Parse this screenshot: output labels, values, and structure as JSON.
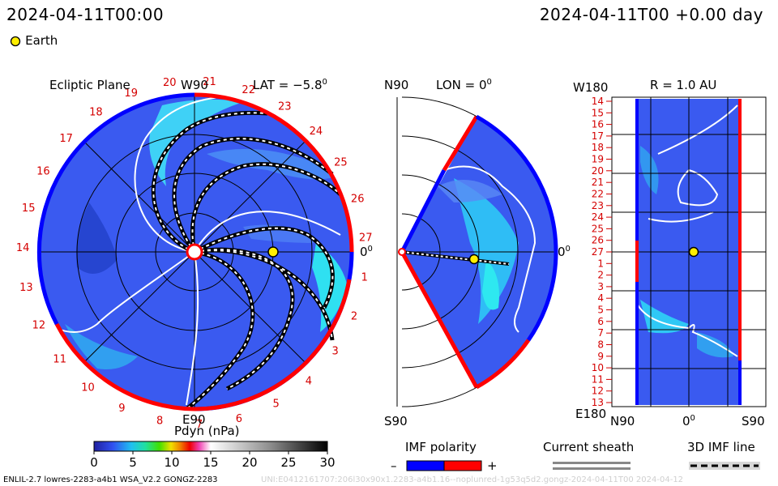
{
  "header": {
    "datetime_left": "2024-04-11T00:00",
    "datetime_right": "2024-04-11T00 +0.00 day"
  },
  "legend": {
    "earth_label": "Earth",
    "earth_color": "#ffee00"
  },
  "panel_ecliptic": {
    "title": "Ecliptic Plane",
    "lat_label": "LAT = −5.8",
    "lat_deg": "0",
    "top_label": "W90",
    "bottom_label": "E90",
    "right_label": "0",
    "right_deg": "0"
  },
  "panel_meridional": {
    "top_label": "N90",
    "lon_label": "LON = 0",
    "lon_deg": "0",
    "bottom_label": "S90",
    "right_label": "0",
    "right_deg": "0"
  },
  "panel_r": {
    "top_left_label": "W180",
    "r_label": "R = 1.0 AU",
    "bottom_left_label": "E180",
    "x_labels": [
      "N90",
      "0",
      "S90"
    ],
    "x_deg": "0"
  },
  "carrington_ticks": [
    "14",
    "15",
    "16",
    "17",
    "18",
    "19",
    "20",
    "21",
    "22",
    "23",
    "24",
    "25",
    "26",
    "27",
    "1",
    "2",
    "3",
    "4",
    "5",
    "6",
    "7",
    "8",
    "9",
    "10",
    "11",
    "12",
    "13"
  ],
  "colorbar": {
    "title": "Pdyn (nPa)",
    "ticks": [
      "0",
      "5",
      "10",
      "15",
      "20",
      "25",
      "30"
    ],
    "range": [
      0,
      30
    ]
  },
  "imf_legend": {
    "title": "IMF polarity",
    "minus": "–",
    "plus": "+",
    "neg_color": "#0000ff",
    "pos_color": "#ff0000"
  },
  "sheath_legend": {
    "title": "Current sheath"
  },
  "imf_line_legend": {
    "title": "3D IMF line"
  },
  "footer": {
    "left": "ENLIL-2.7 lowres-2283-a4b1 WSA_V2.2 GONGZ-2283",
    "right": "UNI:E0412161707:206l30x90x1.2283-a4b1.16--noplunred-1g53q5d2.gongz-2024-04-11T00 2024-04-12"
  },
  "colors": {
    "background_fill": "#3a5af0",
    "high_density": "#20f0f0",
    "polarity_pos": "#ff0000",
    "polarity_neg": "#0000ff"
  }
}
